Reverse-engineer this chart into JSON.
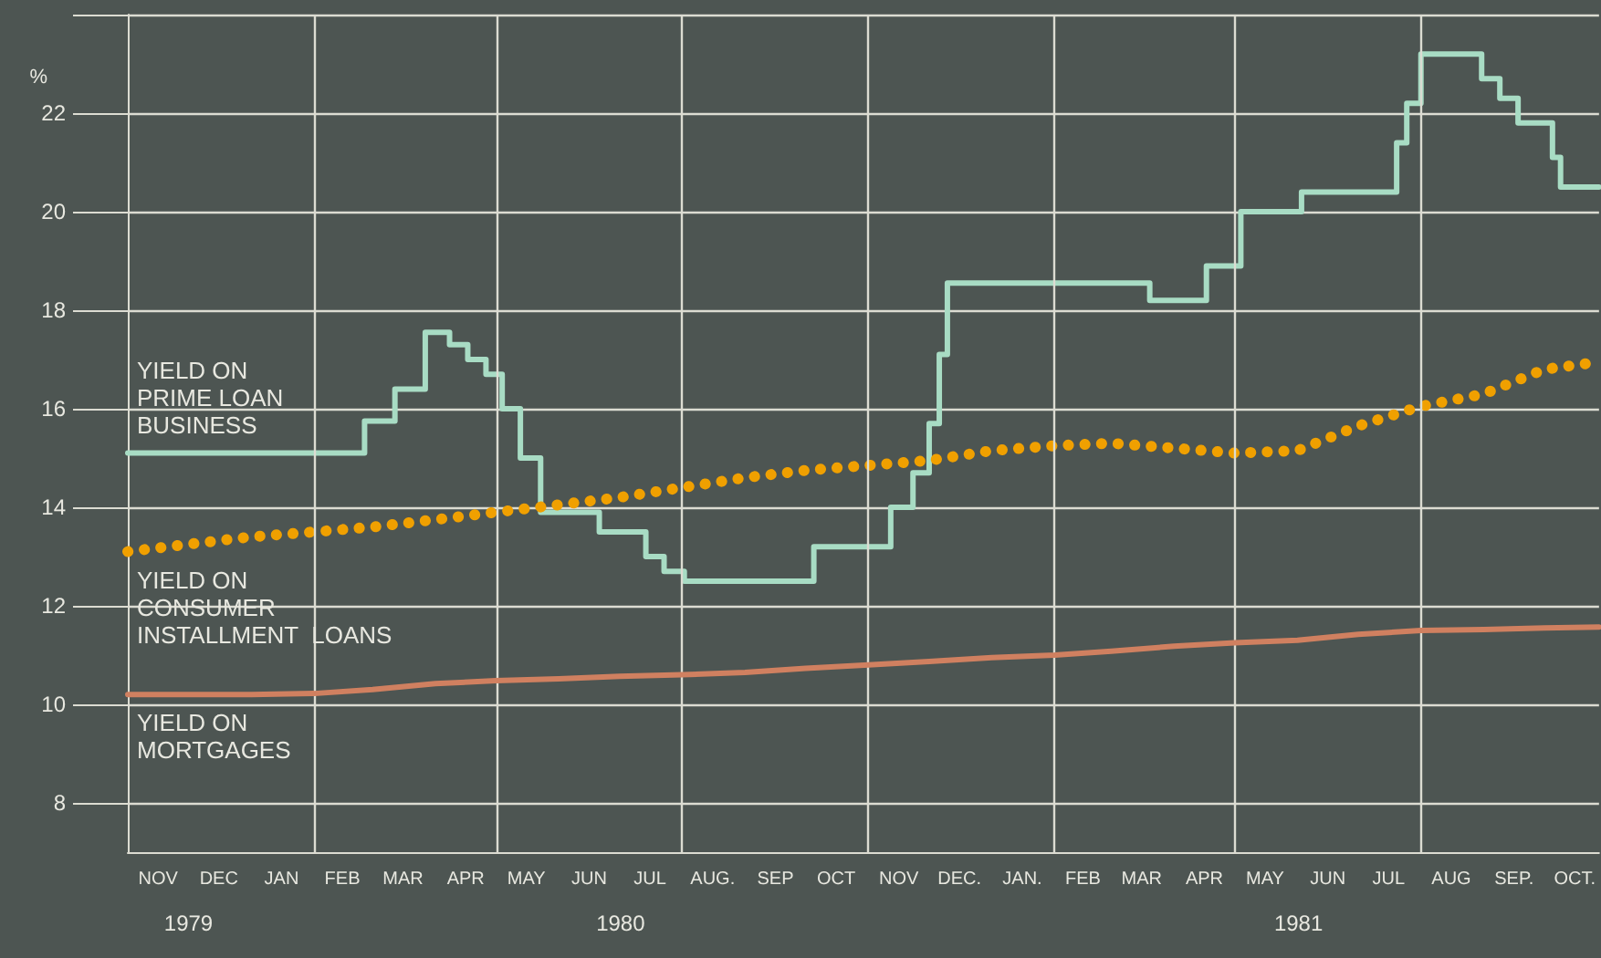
{
  "chart_data": {
    "type": "line",
    "ylabel": "%",
    "ylim": [
      7,
      24
    ],
    "yticks": [
      8,
      10,
      12,
      14,
      16,
      18,
      20,
      22,
      {
        "value": 24,
        "label": null
      }
    ],
    "xlim": [
      "1979-11-01",
      "1981-10-28"
    ],
    "xticks": [
      {
        "value": "1979-11-16",
        "label": "NOV"
      },
      {
        "value": "1979-12-16",
        "label": "DEC"
      },
      {
        "value": "1980-01-16",
        "label": "JAN"
      },
      {
        "value": "1980-02-15",
        "label": "FEB"
      },
      {
        "value": "1980-03-16",
        "label": "MAR"
      },
      {
        "value": "1980-04-16",
        "label": "APR"
      },
      {
        "value": "1980-05-16",
        "label": "MAY"
      },
      {
        "value": "1980-06-16",
        "label": "JUN"
      },
      {
        "value": "1980-07-16",
        "label": "JUL"
      },
      {
        "value": "1980-08-16",
        "label": "AUG."
      },
      {
        "value": "1980-09-16",
        "label": "SEP"
      },
      {
        "value": "1980-10-16",
        "label": "OCT"
      },
      {
        "value": "1980-11-16",
        "label": "NOV"
      },
      {
        "value": "1980-12-16",
        "label": "DEC."
      },
      {
        "value": "1981-01-16",
        "label": "JAN."
      },
      {
        "value": "1981-02-15",
        "label": "FEB"
      },
      {
        "value": "1981-03-16",
        "label": "MAR"
      },
      {
        "value": "1981-04-16",
        "label": "APR"
      },
      {
        "value": "1981-05-16",
        "label": "MAY"
      },
      {
        "value": "1981-06-16",
        "label": "JUN"
      },
      {
        "value": "1981-07-16",
        "label": "JUL"
      },
      {
        "value": "1981-08-16",
        "label": "AUG"
      },
      {
        "value": "1981-09-16",
        "label": "SEP."
      },
      {
        "value": "1981-10-16",
        "label": "OCT."
      }
    ],
    "grid": "y",
    "legend": false,
    "marker": "none",
    "ref_lines": [
      {
        "axis": "x",
        "value": "1980-02-01",
        "color": "#dcdcd2"
      },
      {
        "axis": "x",
        "value": "1980-05-01",
        "color": "#dcdcd2"
      },
      {
        "axis": "x",
        "value": "1980-08-01",
        "color": "#dcdcd2"
      },
      {
        "axis": "x",
        "value": "1980-11-01",
        "color": "#dcdcd2"
      },
      {
        "axis": "x",
        "value": "1981-02-01",
        "color": "#dcdcd2"
      },
      {
        "axis": "x",
        "value": "1981-05-01",
        "color": "#dcdcd2"
      },
      {
        "axis": "x",
        "value": "1981-08-01",
        "color": "#dcdcd2"
      }
    ],
    "annotations": [
      "1979",
      "1980",
      "1981"
    ],
    "series": [
      {
        "name": "YIELD ON\nPRIME LOAN\nBUSINESS",
        "type": "step",
        "color": "#a8dcc4",
        "line_style": "solid",
        "x": [
          "1979-11-01",
          "1980-02-26",
          "1980-03-12",
          "1980-03-27",
          "1980-04-08",
          "1980-04-17",
          "1980-04-26",
          "1980-05-04",
          "1980-05-13",
          "1980-05-23",
          "1980-06-21",
          "1980-07-14",
          "1980-07-23",
          "1980-08-02",
          "1980-10-05",
          "1980-11-12",
          "1980-11-23",
          "1980-12-01",
          "1980-12-06",
          "1980-12-10",
          "1981-03-20",
          "1981-04-17",
          "1981-05-04",
          "1981-06-03",
          "1981-07-20",
          "1981-07-25",
          "1981-08-01",
          "1981-08-31",
          "1981-09-09",
          "1981-09-18",
          "1981-10-05",
          "1981-10-09",
          "1981-10-28"
        ],
        "values": [
          15.1,
          15.75,
          16.4,
          17.55,
          17.3,
          17.0,
          16.7,
          16.0,
          15.0,
          13.9,
          13.5,
          13.0,
          12.7,
          12.5,
          13.2,
          14.0,
          14.7,
          15.7,
          17.1,
          18.55,
          18.2,
          18.9,
          20.0,
          20.4,
          21.4,
          22.2,
          23.2,
          22.7,
          22.3,
          21.8,
          21.1,
          20.5,
          20.5
        ]
      },
      {
        "name": "YIELD ON\nCONSUMER\nINSTALLMENT  LOANS",
        "color": "#f0a000",
        "line_style": "dotted",
        "x": [
          "1979-11-01",
          "1979-12-01",
          "1980-01-01",
          "1980-02-01",
          "1980-03-01",
          "1980-04-01",
          "1980-05-01",
          "1980-06-01",
          "1980-07-01",
          "1980-08-01",
          "1980-09-01",
          "1980-10-01",
          "1980-11-01",
          "1980-12-01",
          "1981-01-01",
          "1981-02-01",
          "1981-03-01",
          "1981-04-01",
          "1981-05-01",
          "1981-06-01",
          "1981-07-01",
          "1981-08-01",
          "1981-09-01",
          "1981-10-01",
          "1981-10-28"
        ],
        "values": [
          13.1,
          13.25,
          13.4,
          13.5,
          13.6,
          13.75,
          13.9,
          14.05,
          14.2,
          14.4,
          14.6,
          14.75,
          14.85,
          14.95,
          15.15,
          15.25,
          15.3,
          15.2,
          15.1,
          15.15,
          15.65,
          16.05,
          16.3,
          16.8,
          16.95
        ]
      },
      {
        "name": "YIELD ON\nMORTGAGES",
        "color": "#d08060",
        "line_style": "solid",
        "x": [
          "1979-11-01",
          "1979-12-01",
          "1980-01-01",
          "1980-02-01",
          "1980-03-01",
          "1980-04-01",
          "1980-05-01",
          "1980-06-01",
          "1980-07-01",
          "1980-08-01",
          "1980-09-01",
          "1980-10-01",
          "1980-11-01",
          "1980-12-01",
          "1981-01-01",
          "1981-02-01",
          "1981-03-01",
          "1981-04-01",
          "1981-05-01",
          "1981-06-01",
          "1981-07-01",
          "1981-08-01",
          "1981-09-01",
          "1981-10-01",
          "1981-10-28"
        ],
        "values": [
          10.2,
          10.2,
          10.2,
          10.22,
          10.3,
          10.42,
          10.48,
          10.52,
          10.57,
          10.6,
          10.65,
          10.73,
          10.8,
          10.87,
          10.95,
          11.0,
          11.08,
          11.18,
          11.25,
          11.3,
          11.42,
          11.5,
          11.52,
          11.55,
          11.57
        ]
      }
    ]
  }
}
